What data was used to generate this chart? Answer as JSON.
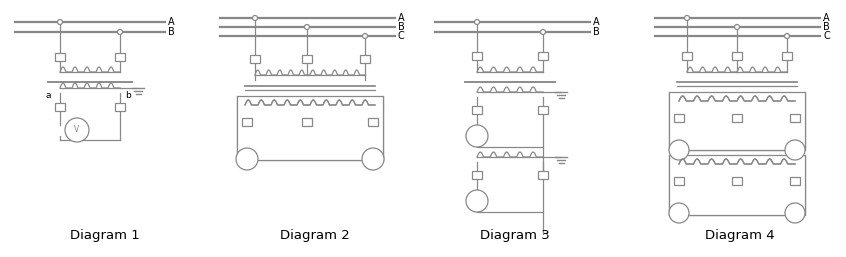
{
  "bg_color": "#ffffff",
  "line_color": "#888888",
  "diagram_labels": [
    "Diagram 1",
    "Diagram 2",
    "Diagram 3",
    "Diagram 4"
  ],
  "label_fontsize": 9.5
}
